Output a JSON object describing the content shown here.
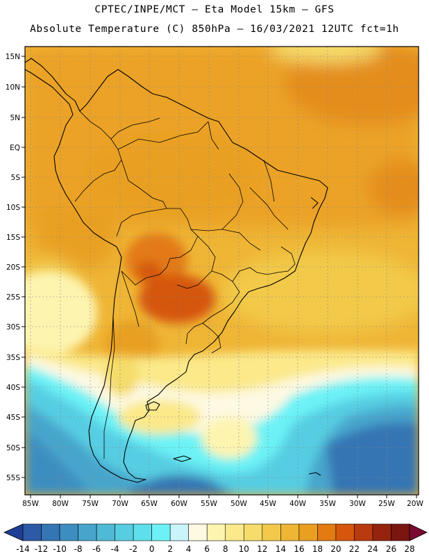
{
  "header": {
    "line1": "CPTEC/INPE/MCT —  Eta Model 15km — GFS",
    "line2": "Absolute Temperature (C) 850hPa — 16/03/2021 12UTC fct=1h"
  },
  "map": {
    "lon_range": [
      -85,
      -20
    ],
    "lat_range": [
      -58,
      16
    ],
    "lat_ticks": [
      "15N",
      "10N",
      "5N",
      "EQ",
      "5S",
      "10S",
      "15S",
      "20S",
      "25S",
      "30S",
      "35S",
      "40S",
      "45S",
      "50S",
      "55S"
    ],
    "lon_ticks": [
      "85W",
      "80W",
      "75W",
      "70W",
      "65W",
      "60W",
      "55W",
      "50W",
      "45W",
      "40W",
      "35W",
      "30W",
      "25W",
      "20W"
    ],
    "grid": true,
    "coastline_color": "#000000"
  },
  "colorbar": {
    "labels": [
      "-14",
      "-12",
      "-10",
      "-8",
      "-6",
      "-4",
      "-2",
      "0",
      "2",
      "4",
      "6",
      "8",
      "10",
      "12",
      "14",
      "16",
      "18",
      "20",
      "22",
      "24",
      "26",
      "28"
    ],
    "colors": [
      "#1f3f96",
      "#2d5aa6",
      "#3475b3",
      "#3d8ec0",
      "#47a5cc",
      "#4fbad6",
      "#57cde2",
      "#5ee0ec",
      "#6cf2f6",
      "#c9f4fb",
      "#fdf9e2",
      "#fdf4b0",
      "#fbe98a",
      "#f6dc6a",
      "#f2c94a",
      "#efb535",
      "#e9a021",
      "#e37a12",
      "#d5560c",
      "#b93a0e",
      "#95240f",
      "#7a1610",
      "#7a0a30"
    ]
  }
}
